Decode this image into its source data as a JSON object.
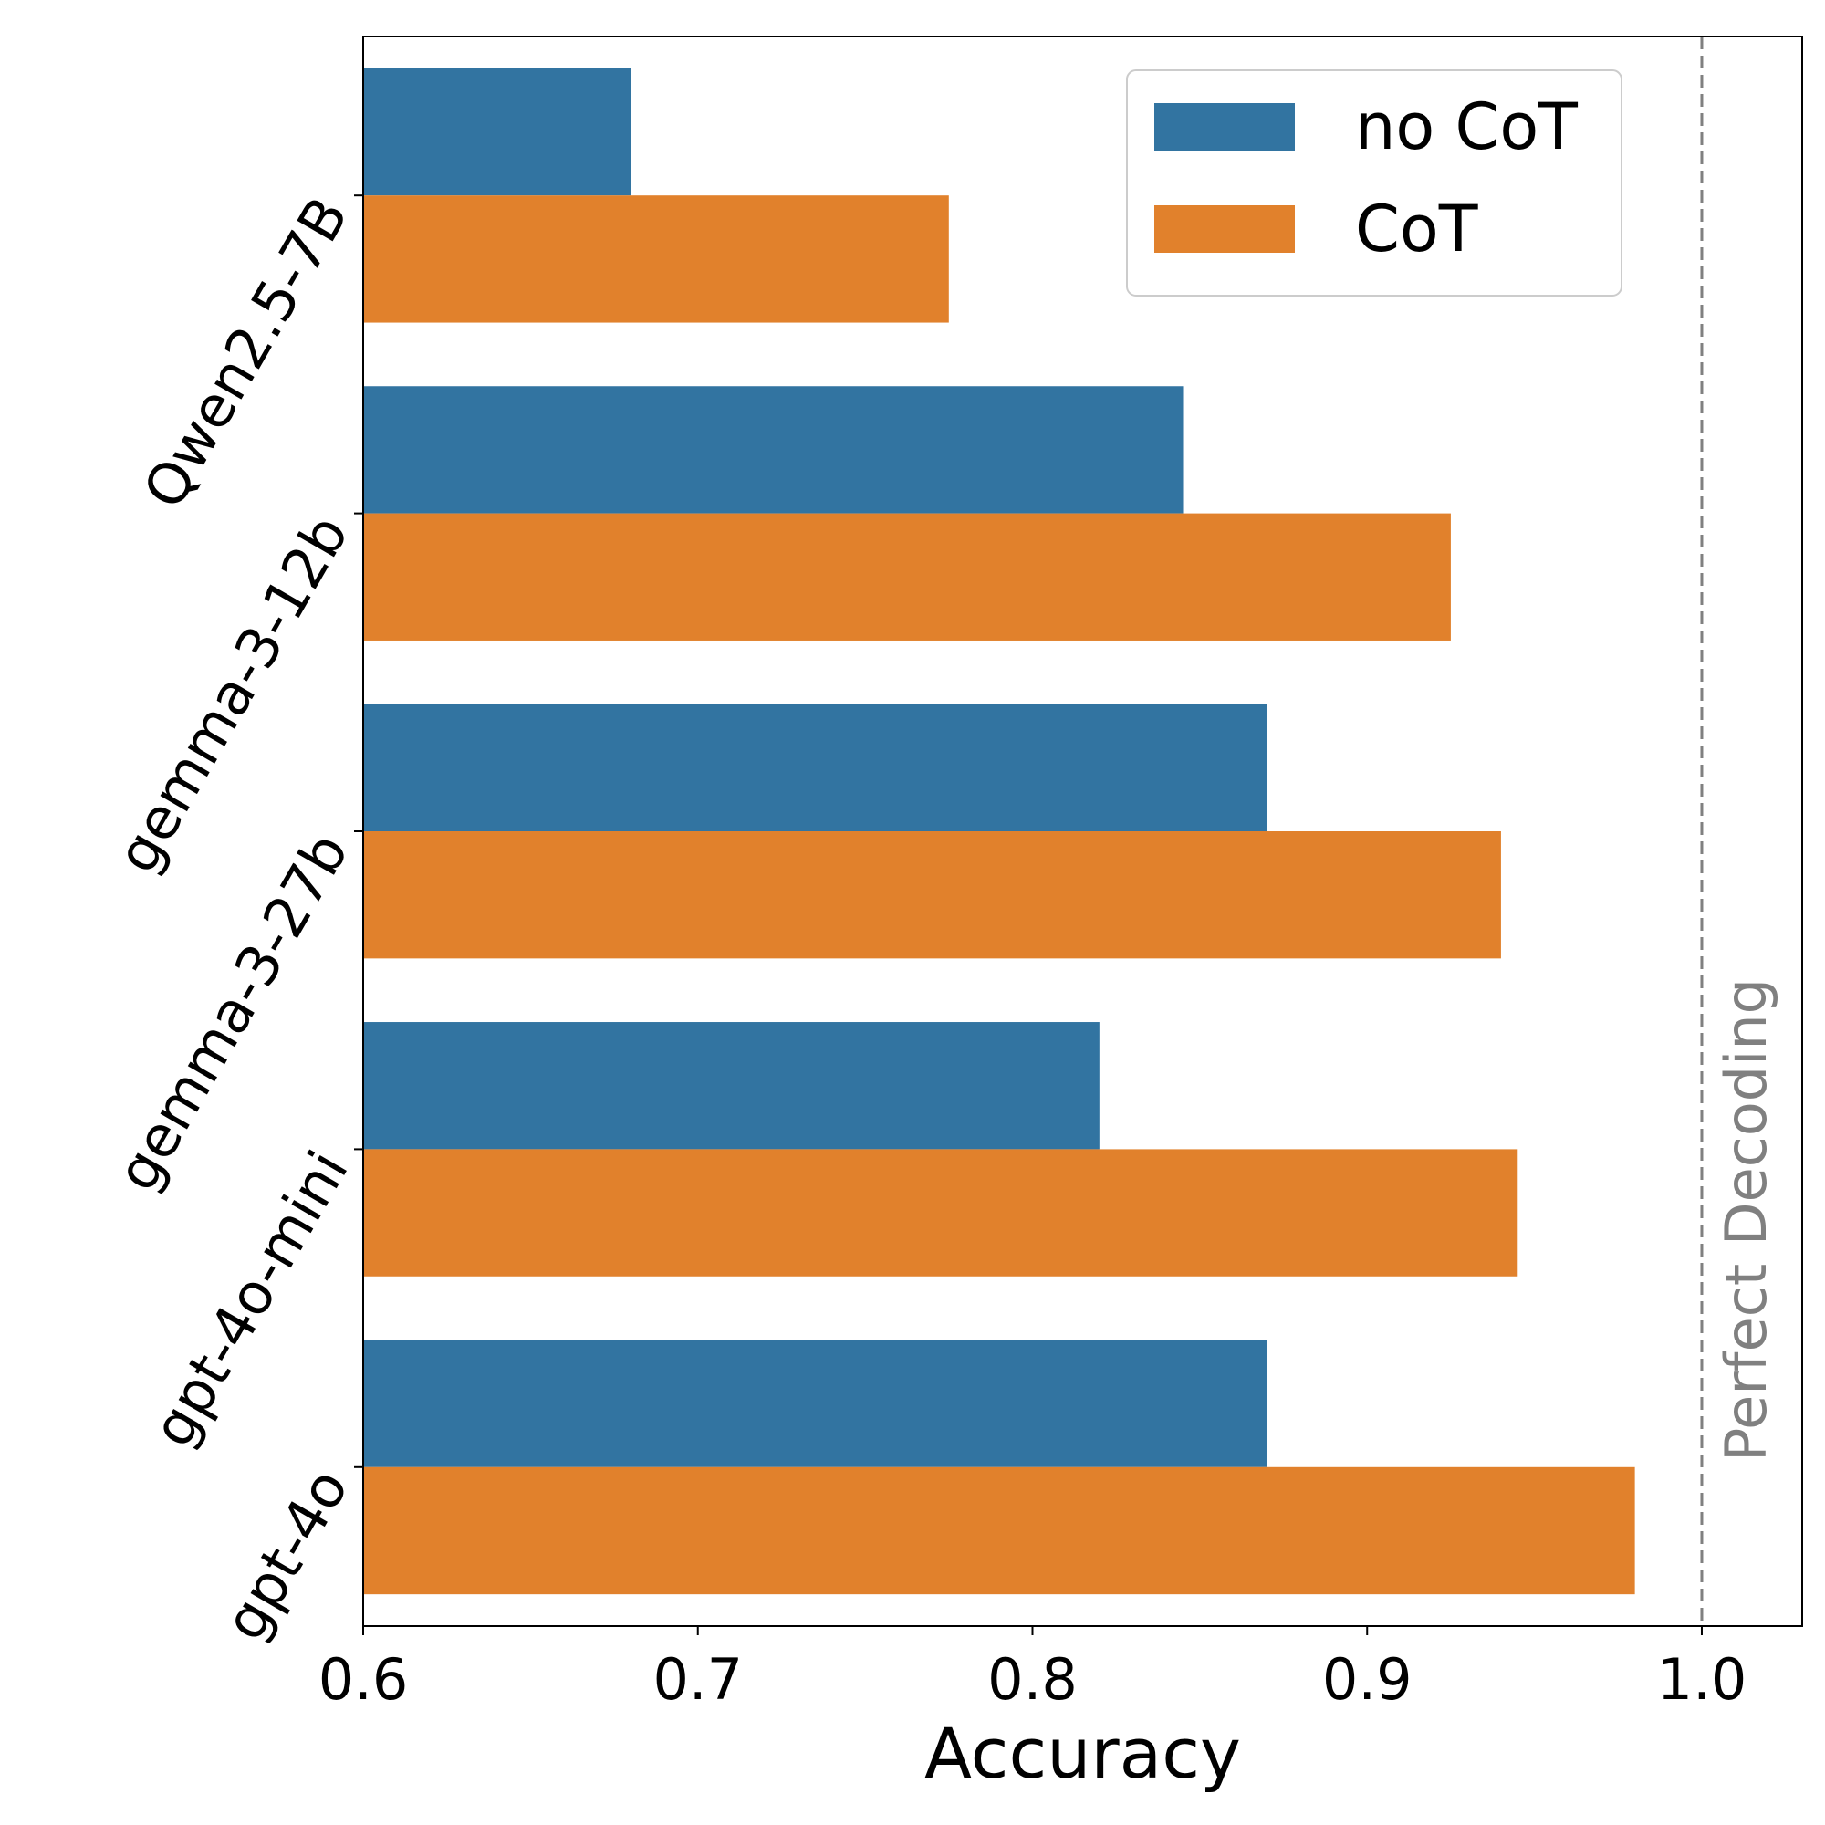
{
  "chart_data": {
    "type": "bar",
    "orientation": "horizontal",
    "categories": [
      "Qwen2.5-7B",
      "gemma-3-12b",
      "gemma-3-27b",
      "gpt-4o-mini",
      "gpt-4o"
    ],
    "series": [
      {
        "name": "no CoT",
        "color": "#3274a1",
        "values": [
          0.68,
          0.845,
          0.87,
          0.82,
          0.87
        ]
      },
      {
        "name": "CoT",
        "color": "#e1812c",
        "values": [
          0.775,
          0.925,
          0.94,
          0.945,
          0.98
        ]
      }
    ],
    "xlabel": "Accuracy",
    "ylabel": "",
    "xlim": [
      0.6,
      1.03
    ],
    "xticks": [
      0.6,
      0.7,
      0.8,
      0.9,
      1.0
    ],
    "xtick_labels": [
      "0.6",
      "0.7",
      "0.8",
      "0.9",
      "1.0"
    ],
    "reference_line": {
      "value": 1.0,
      "label": "Perfect Decoding",
      "style": "dashed",
      "color": "#808080"
    },
    "legend_position": "top-right",
    "grid": false
  }
}
